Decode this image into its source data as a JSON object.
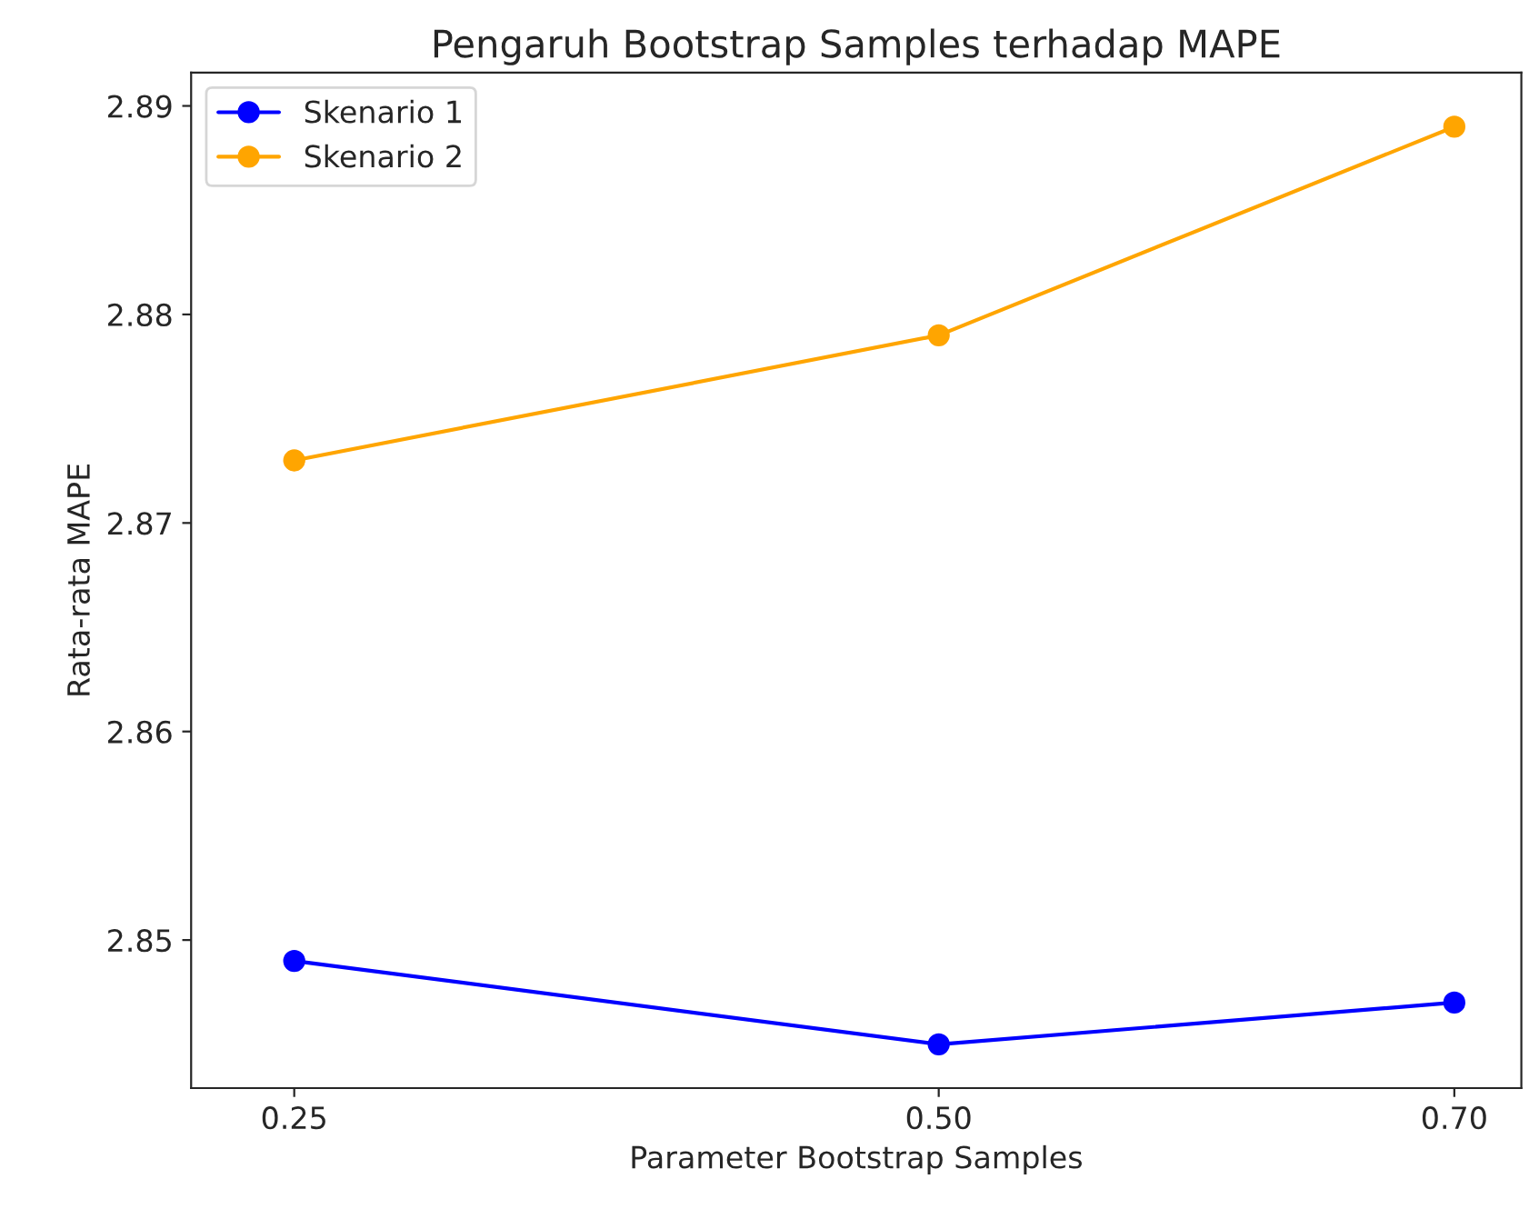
{
  "chart_data": {
    "type": "line",
    "title": "Pengaruh Bootstrap Samples terhadap MAPE",
    "xlabel": "Parameter Bootstrap Samples",
    "ylabel": "Rata-rata MAPE",
    "x": [
      0.25,
      0.5,
      0.7
    ],
    "series": [
      {
        "name": "Skenario 1",
        "color": "#0000ff",
        "values": [
          2.849,
          2.845,
          2.847
        ]
      },
      {
        "name": "Skenario 2",
        "color": "#ffa500",
        "values": [
          2.873,
          2.879,
          2.889
        ]
      }
    ],
    "xlim": [
      0.21,
      0.726
    ],
    "xticks": [
      {
        "value": 0.25,
        "label": "0.25"
      },
      {
        "value": 0.5,
        "label": "0.50"
      },
      {
        "value": 0.7,
        "label": "0.70"
      }
    ],
    "ylim": [
      2.8429,
      2.8916
    ],
    "yticks": [
      2.85,
      2.86,
      2.87,
      2.88,
      2.89
    ],
    "legend": "top left",
    "grid": false,
    "marker": "circle",
    "line_style": "solid"
  }
}
